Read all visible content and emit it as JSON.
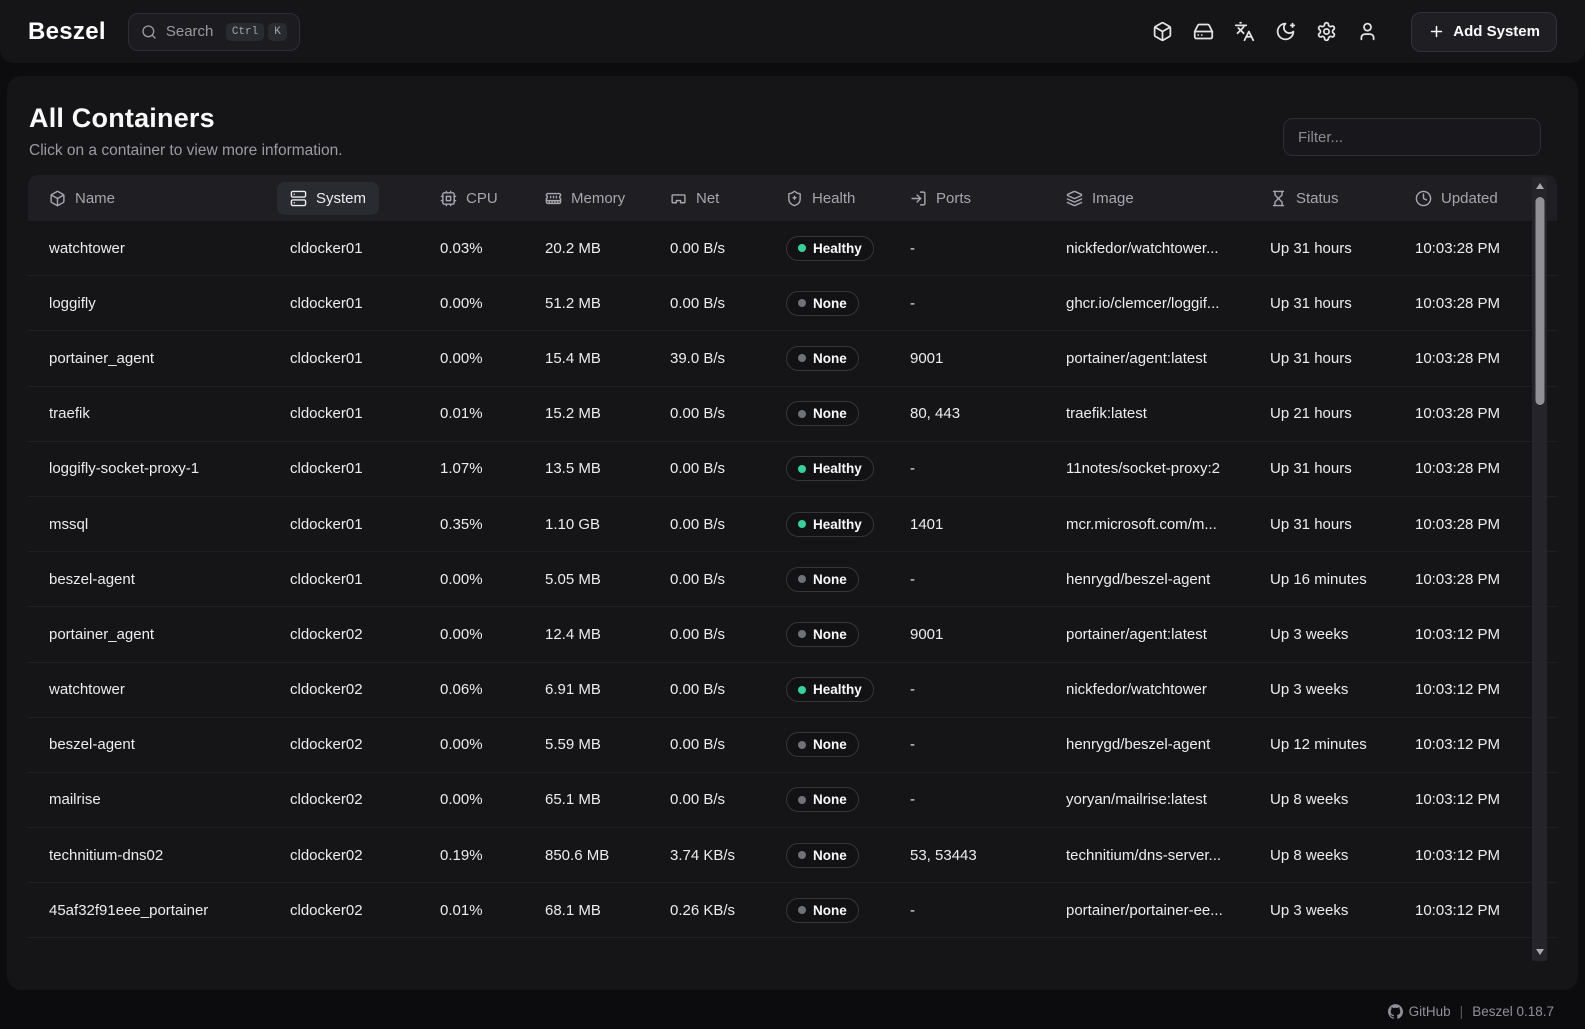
{
  "navbar": {
    "logo": "Beszel",
    "search": {
      "label": "Search",
      "shortcut_keys": [
        "Ctrl",
        "K"
      ]
    },
    "action_icons": [
      {
        "name": "containers-icon"
      },
      {
        "name": "systems-icon"
      },
      {
        "name": "language-icon"
      },
      {
        "name": "theme-icon"
      },
      {
        "name": "settings-icon"
      },
      {
        "name": "user-icon"
      }
    ],
    "add_system": {
      "label": "Add System"
    }
  },
  "page": {
    "title": "All Containers",
    "subtitle": "Click on a container to view more information.",
    "filter_placeholder": "Filter..."
  },
  "table": {
    "columns": [
      {
        "key": "name",
        "label": "Name",
        "icon": "box-icon",
        "active": false
      },
      {
        "key": "system",
        "label": "System",
        "icon": "server-icon",
        "active": true
      },
      {
        "key": "cpu",
        "label": "CPU",
        "icon": "cpu-icon",
        "active": false
      },
      {
        "key": "memory",
        "label": "Memory",
        "icon": "memory-icon",
        "active": false
      },
      {
        "key": "net",
        "label": "Net",
        "icon": "ethernet-icon",
        "active": false
      },
      {
        "key": "health",
        "label": "Health",
        "icon": "shield-icon",
        "active": false
      },
      {
        "key": "ports",
        "label": "Ports",
        "icon": "ports-icon",
        "active": false
      },
      {
        "key": "image",
        "label": "Image",
        "icon": "layers-icon",
        "active": false
      },
      {
        "key": "status",
        "label": "Status",
        "icon": "hourglass-icon",
        "active": false
      },
      {
        "key": "updated",
        "label": "Updated",
        "icon": "clock-icon",
        "active": false
      }
    ],
    "rows": [
      {
        "name": "watchtower",
        "system": "cldocker01",
        "cpu": "0.03%",
        "memory": "20.2 MB",
        "net": "0.00 B/s",
        "health": "Healthy",
        "ports": "-",
        "image": "nickfedor/watchtower...",
        "status": "Up 31 hours",
        "updated": "10:03:28 PM"
      },
      {
        "name": "loggifly",
        "system": "cldocker01",
        "cpu": "0.00%",
        "memory": "51.2 MB",
        "net": "0.00 B/s",
        "health": "None",
        "ports": "-",
        "image": "ghcr.io/clemcer/loggif...",
        "status": "Up 31 hours",
        "updated": "10:03:28 PM"
      },
      {
        "name": "portainer_agent",
        "system": "cldocker01",
        "cpu": "0.00%",
        "memory": "15.4 MB",
        "net": "39.0 B/s",
        "health": "None",
        "ports": "9001",
        "image": "portainer/agent:latest",
        "status": "Up 31 hours",
        "updated": "10:03:28 PM"
      },
      {
        "name": "traefik",
        "system": "cldocker01",
        "cpu": "0.01%",
        "memory": "15.2 MB",
        "net": "0.00 B/s",
        "health": "None",
        "ports": "80, 443",
        "image": "traefik:latest",
        "status": "Up 21 hours",
        "updated": "10:03:28 PM"
      },
      {
        "name": "loggifly-socket-proxy-1",
        "system": "cldocker01",
        "cpu": "1.07%",
        "memory": "13.5 MB",
        "net": "0.00 B/s",
        "health": "Healthy",
        "ports": "-",
        "image": "11notes/socket-proxy:2",
        "status": "Up 31 hours",
        "updated": "10:03:28 PM"
      },
      {
        "name": "mssql",
        "system": "cldocker01",
        "cpu": "0.35%",
        "memory": "1.10 GB",
        "net": "0.00 B/s",
        "health": "Healthy",
        "ports": "1401",
        "image": "mcr.microsoft.com/m...",
        "status": "Up 31 hours",
        "updated": "10:03:28 PM"
      },
      {
        "name": "beszel-agent",
        "system": "cldocker01",
        "cpu": "0.00%",
        "memory": "5.05 MB",
        "net": "0.00 B/s",
        "health": "None",
        "ports": "-",
        "image": "henrygd/beszel-agent",
        "status": "Up 16 minutes",
        "updated": "10:03:28 PM"
      },
      {
        "name": "portainer_agent",
        "system": "cldocker02",
        "cpu": "0.00%",
        "memory": "12.4 MB",
        "net": "0.00 B/s",
        "health": "None",
        "ports": "9001",
        "image": "portainer/agent:latest",
        "status": "Up 3 weeks",
        "updated": "10:03:12 PM"
      },
      {
        "name": "watchtower",
        "system": "cldocker02",
        "cpu": "0.06%",
        "memory": "6.91 MB",
        "net": "0.00 B/s",
        "health": "Healthy",
        "ports": "-",
        "image": "nickfedor/watchtower",
        "status": "Up 3 weeks",
        "updated": "10:03:12 PM"
      },
      {
        "name": "beszel-agent",
        "system": "cldocker02",
        "cpu": "0.00%",
        "memory": "5.59 MB",
        "net": "0.00 B/s",
        "health": "None",
        "ports": "-",
        "image": "henrygd/beszel-agent",
        "status": "Up 12 minutes",
        "updated": "10:03:12 PM"
      },
      {
        "name": "mailrise",
        "system": "cldocker02",
        "cpu": "0.00%",
        "memory": "65.1 MB",
        "net": "0.00 B/s",
        "health": "None",
        "ports": "-",
        "image": "yoryan/mailrise:latest",
        "status": "Up 8 weeks",
        "updated": "10:03:12 PM"
      },
      {
        "name": "technitium-dns02",
        "system": "cldocker02",
        "cpu": "0.19%",
        "memory": "850.6 MB",
        "net": "3.74 KB/s",
        "health": "None",
        "ports": "53, 53443",
        "image": "technitium/dns-server...",
        "status": "Up 8 weeks",
        "updated": "10:03:12 PM"
      },
      {
        "name": "45af32f91eee_portainer",
        "system": "cldocker02",
        "cpu": "0.01%",
        "memory": "68.1 MB",
        "net": "0.26 KB/s",
        "health": "None",
        "ports": "-",
        "image": "portainer/portainer-ee...",
        "status": "Up 3 weeks",
        "updated": "10:03:12 PM"
      }
    ]
  },
  "footer": {
    "github_label": "GitHub",
    "separator": "|",
    "version": "Beszel 0.18.7"
  },
  "colors": {
    "healthy_dot": "#34d399",
    "none_dot": "#71717a"
  }
}
